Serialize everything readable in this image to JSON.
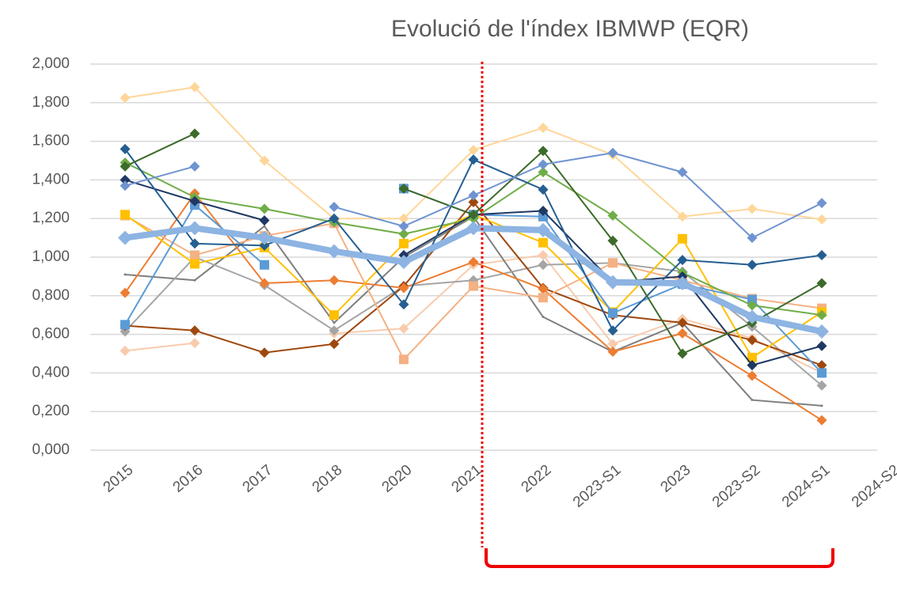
{
  "chart_data": {
    "type": "line",
    "title": "Evolució de l'índex IBMWP (EQR)",
    "categories": [
      "2015",
      "2016",
      "2017",
      "2018",
      "2020",
      "2021",
      "2022",
      "2023-S1",
      "2023",
      "2023-S2",
      "2024-S1",
      "2024-S2"
    ],
    "ylim": [
      0,
      2
    ],
    "yticks": [
      {
        "value": 0,
        "label": "0,000"
      },
      {
        "value": 0.2,
        "label": "0,200"
      },
      {
        "value": 0.4,
        "label": "0,400"
      },
      {
        "value": 0.6,
        "label": "0,600"
      },
      {
        "value": 0.8,
        "label": "0,800"
      },
      {
        "value": 1,
        "label": "1,000"
      },
      {
        "value": 1.2,
        "label": "1,200"
      },
      {
        "value": 1.4,
        "label": "1,400"
      },
      {
        "value": 1.6,
        "label": "1,600"
      },
      {
        "value": 1.8,
        "label": "1,800"
      },
      {
        "value": 2,
        "label": "2,000"
      }
    ],
    "grid": true,
    "series": [
      {
        "color": "#ffd699",
        "marker": "diamond",
        "width": 2,
        "values": [
          1.825,
          1.88,
          1.5,
          1.2,
          1.2,
          1.555,
          1.67,
          1.53,
          1.21,
          1.25,
          1.195,
          null
        ]
      },
      {
        "color": "#f8cbad",
        "marker": "diamond",
        "width": 2,
        "values": [
          0.515,
          0.555,
          null,
          0.605,
          0.63,
          0.96,
          1.01,
          0.55,
          0.68,
          0.58,
          0.4,
          null
        ]
      },
      {
        "color": "#7f7f7f",
        "marker": "none",
        "width": 2,
        "values": [
          0.91,
          0.88,
          1.16,
          0.66,
          1.0,
          1.21,
          0.69,
          0.51,
          0.66,
          0.26,
          0.23,
          null
        ]
      },
      {
        "color": "#a5a5a5",
        "marker": "diamond",
        "width": 2,
        "values": [
          0.615,
          1.0,
          0.855,
          0.62,
          0.85,
          0.88,
          0.96,
          0.97,
          0.925,
          0.64,
          0.335,
          null
        ]
      },
      {
        "color": "#9e480e",
        "marker": "diamond",
        "width": 2,
        "values": [
          0.645,
          0.62,
          0.505,
          0.55,
          0.85,
          1.285,
          0.84,
          0.7,
          0.66,
          0.57,
          0.44,
          null
        ]
      },
      {
        "color": "#ed7d31",
        "marker": "diamond",
        "width": 2,
        "values": [
          0.815,
          1.33,
          0.865,
          0.88,
          0.84,
          0.975,
          0.835,
          0.51,
          0.605,
          0.385,
          0.155,
          null
        ]
      },
      {
        "color": "#f4b183",
        "marker": "square",
        "width": 2,
        "values": [
          1.215,
          1.01,
          1.11,
          1.175,
          0.47,
          0.85,
          0.79,
          0.97,
          0.88,
          0.785,
          0.735,
          null
        ]
      },
      {
        "color": "#ffc000",
        "marker": "square",
        "width": 2,
        "values": [
          1.22,
          0.965,
          1.05,
          0.7,
          1.07,
          1.22,
          1.075,
          0.715,
          1.095,
          0.48,
          0.715,
          null
        ]
      },
      {
        "color": "#5b9bd5",
        "marker": "square",
        "width": 2,
        "values": [
          0.65,
          1.27,
          0.96,
          null,
          1.355,
          1.22,
          1.21,
          0.71,
          0.86,
          0.78,
          0.4,
          null
        ]
      },
      {
        "color": "#70ad47",
        "marker": "diamond",
        "width": 2,
        "values": [
          1.49,
          1.31,
          1.25,
          1.18,
          1.12,
          1.2,
          1.44,
          1.215,
          0.92,
          0.75,
          0.7,
          null
        ]
      },
      {
        "color": "#1f3864",
        "marker": "diamond",
        "width": 2,
        "values": [
          1.4,
          1.29,
          1.19,
          null,
          1.01,
          1.22,
          1.24,
          0.87,
          0.9,
          0.44,
          0.54,
          null
        ]
      },
      {
        "color": "#255e91",
        "marker": "diamond",
        "width": 2,
        "values": [
          1.56,
          1.07,
          1.06,
          1.2,
          0.755,
          1.505,
          1.35,
          0.62,
          0.985,
          0.96,
          1.01,
          null
        ]
      },
      {
        "color": "#3d6b2a",
        "marker": "diamond",
        "width": 2,
        "values": [
          1.47,
          1.64,
          null,
          null,
          1.355,
          1.22,
          1.55,
          1.085,
          0.5,
          0.66,
          0.865,
          null
        ]
      },
      {
        "color": "#7094d0",
        "marker": "diamond",
        "width": 2,
        "values": [
          1.37,
          1.47,
          null,
          1.26,
          1.16,
          1.32,
          1.48,
          1.54,
          1.44,
          1.1,
          1.28,
          null
        ]
      },
      {
        "color": "#8db4e2",
        "marker": "diamond",
        "width": 8,
        "values": [
          1.1,
          1.15,
          1.1,
          1.03,
          0.975,
          1.15,
          1.14,
          0.87,
          0.865,
          0.69,
          0.615,
          null
        ]
      }
    ]
  }
}
